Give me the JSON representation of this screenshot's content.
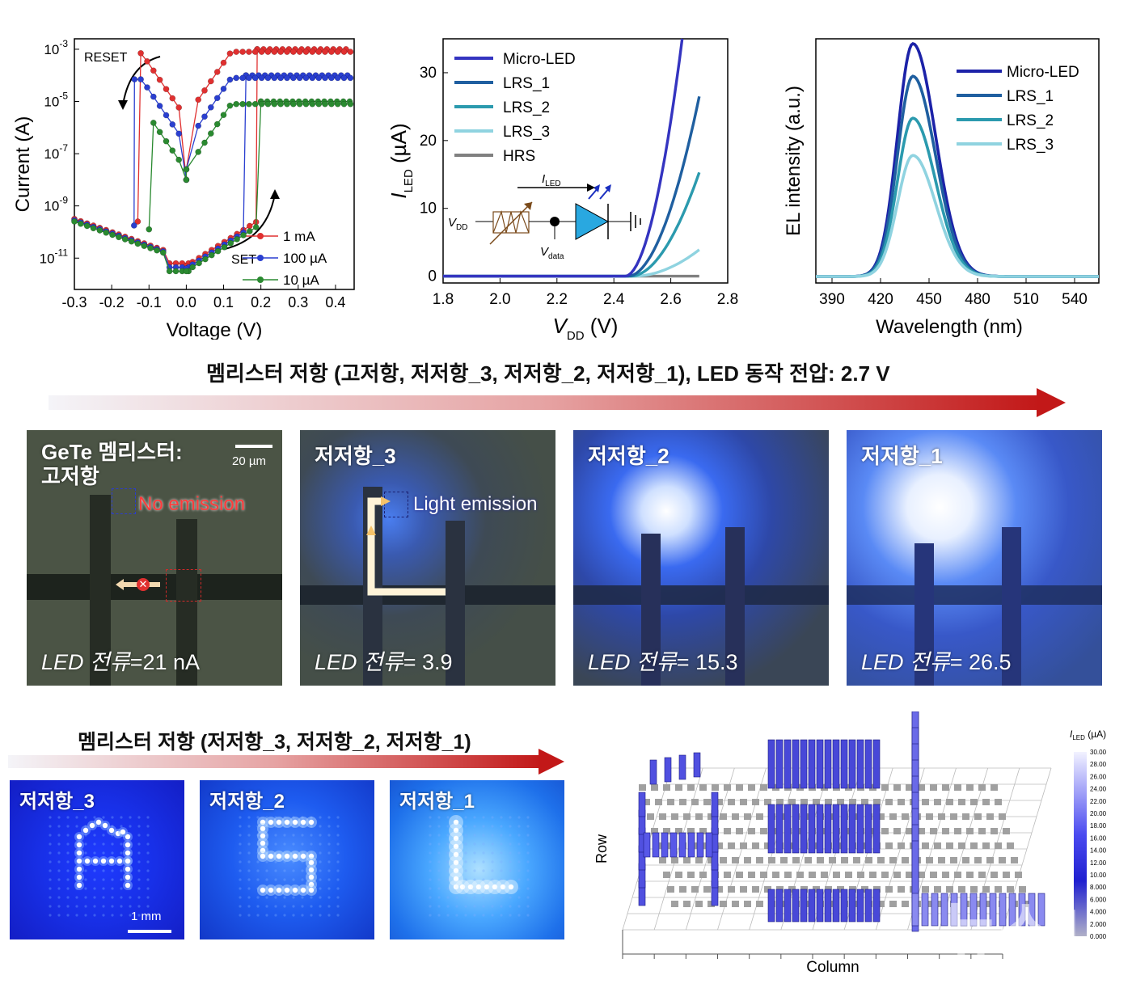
{
  "chart_data": [
    {
      "type": "line",
      "ylog": true,
      "xlabel": "Voltage (V)",
      "ylabel": "Current (A)",
      "xticks": [
        "-0.3",
        "-0.2",
        "-0.1",
        "0.0",
        "0.1",
        "0.2",
        "0.3",
        "0.4"
      ],
      "yticks": [
        "10-3",
        "10-5",
        "10-7",
        "10-9",
        "10-11"
      ],
      "xlim": [
        -0.3,
        0.45
      ],
      "ylim_log10": [
        -12.2,
        -2.6
      ],
      "annotations": [
        "RESET",
        "SET"
      ],
      "series": [
        {
          "name": "1 mA",
          "color": "#e03030",
          "compliance": 0.001,
          "set_v": 0.19,
          "reset_v": -0.13
        },
        {
          "name": "100 µA",
          "color": "#2a3fd0",
          "compliance": 0.0001,
          "set_v": 0.16,
          "reset_v": -0.14
        },
        {
          "name": "10 µA",
          "color": "#2a8a30",
          "compliance": 1e-05,
          "set_v": 0.2,
          "reset_v": -0.1
        }
      ]
    },
    {
      "type": "line",
      "xlabel": "V",
      "xlabel_sub": "DD",
      "xlabel_unit": "(V)",
      "ylabel": "I",
      "ylabel_sub": "LED",
      "ylabel_unit": "(µA)",
      "xticks": [
        "1.8",
        "2.0",
        "2.2",
        "2.4",
        "2.6",
        "2.8"
      ],
      "yticks": [
        "0",
        "10",
        "20",
        "30"
      ],
      "xlim": [
        1.8,
        2.8
      ],
      "ylim": [
        -1,
        35
      ],
      "series": [
        {
          "name": "Micro-LED",
          "color": "#3434c0",
          "end_value": 35,
          "turn_on": 2.44,
          "x_end": 2.64
        },
        {
          "name": "LRS_1",
          "color": "#1f5fa0",
          "end_value": 26.5,
          "turn_on": 2.45,
          "x_end": 2.7
        },
        {
          "name": "LRS_2",
          "color": "#2b9aae",
          "end_value": 15.3,
          "turn_on": 2.46,
          "x_end": 2.7
        },
        {
          "name": "LRS_3",
          "color": "#8fd3e0",
          "end_value": 3.9,
          "turn_on": 2.47,
          "x_end": 2.7
        },
        {
          "name": "HRS",
          "color": "#808080",
          "end_value": 0,
          "turn_on": 2.8,
          "x_end": 2.7
        }
      ],
      "inset_labels": {
        "i_led": "I",
        "i_led_sub": "LED",
        "vdd": "V",
        "vdd_sub": "DD",
        "vdata": "V",
        "vdata_sub": "data"
      }
    },
    {
      "type": "line",
      "xlabel": "Wavelength (nm)",
      "ylabel": "EL intensity (a.u.)",
      "xticks": [
        "390",
        "420",
        "450",
        "480",
        "510",
        "540"
      ],
      "xlim": [
        380,
        555
      ],
      "peak_nm": 440,
      "series": [
        {
          "name": "Micro-LED",
          "color": "#1c22a8",
          "peak": 1.0
        },
        {
          "name": "LRS_1",
          "color": "#1f5fa0",
          "peak": 0.86
        },
        {
          "name": "LRS_2",
          "color": "#2b9aae",
          "peak": 0.68
        },
        {
          "name": "LRS_3",
          "color": "#8fd3e0",
          "peak": 0.52
        }
      ]
    }
  ],
  "middle": {
    "caption": "멤리스터 저항 (고저항, 저저항_3, 저저항_2, 저저항_1), LED 동작 전압: 2.7 V",
    "panels": [
      {
        "title_line1": "GeTe 멤리스터:",
        "title_line2": "고저항",
        "current_label": "LED 전류",
        "current_value": "=21 nA",
        "note": "No emission",
        "scale": "20 µm"
      },
      {
        "title_line1": "저저항_3",
        "current_label": "LED 전류",
        "current_value": "= 3.9",
        "note": "Light emission"
      },
      {
        "title_line1": "저저항_2",
        "current_label": "LED 전류",
        "current_value": "= 15.3"
      },
      {
        "title_line1": "저저항_1",
        "current_label": "LED 전류",
        "current_value": "= 26.5"
      }
    ]
  },
  "bottom": {
    "caption": "멤리스터 저항 (저저항_3, 저저항_2, 저저항_1)",
    "panels": [
      {
        "label": "저저항_3",
        "letter": "A",
        "scale": "1 mm"
      },
      {
        "label": "저저항_2",
        "letter": "S"
      },
      {
        "label": "저저항_1",
        "letter": "L"
      }
    ],
    "bar3d": {
      "row_label": "Row",
      "column_label": "Column",
      "colorbar_title": "I",
      "colorbar_sub": "LED",
      "colorbar_unit": "(µA)",
      "colorbar_ticks": [
        "30.00",
        "28.00",
        "26.00",
        "24.00",
        "22.00",
        "20.00",
        "18.00",
        "16.00",
        "14.00",
        "12.00",
        "10.00",
        "8.000",
        "6.000",
        "4.000",
        "2.000",
        "0.000"
      ]
    },
    "watermark": "뉴스1"
  }
}
